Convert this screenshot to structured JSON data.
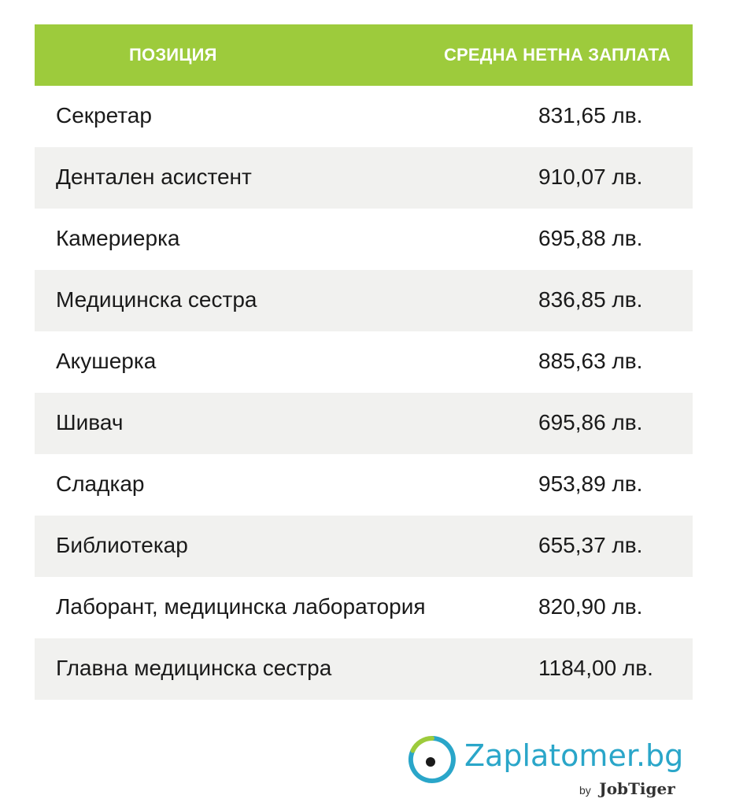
{
  "table": {
    "header": {
      "position": "ПОЗИЦИЯ",
      "salary": "СРЕДНА НЕТНА ЗАПЛАТА"
    },
    "rows": [
      {
        "position": "Секретар",
        "salary": "831,65 лв."
      },
      {
        "position": "Дентален асистент",
        "salary": "910,07 лв."
      },
      {
        "position": "Камериерка",
        "salary": "695,88 лв."
      },
      {
        "position": "Медицинска сестра",
        "salary": "836,85 лв."
      },
      {
        "position": "Акушерка",
        "salary": "885,63 лв."
      },
      {
        "position": "Шивач",
        "salary": "695,86 лв."
      },
      {
        "position": "Сладкар",
        "salary": "953,89 лв."
      },
      {
        "position": "Библиотекар",
        "salary": "655,37 лв."
      },
      {
        "position": "Лаборант, медицинска лаборатория",
        "salary": "820,90 лв."
      },
      {
        "position": "Главна медицинска сестра",
        "salary": "1184,00 лв."
      }
    ]
  },
  "brand": {
    "name": "Zaplatomer.bg",
    "by": "by",
    "company": "JobTiger",
    "logo_icon": "circle-dot-logo-icon"
  },
  "colors": {
    "header_green": "#9dcb3c",
    "row_shade": "#f1f1ef",
    "brand_blue": "#2aa6c9"
  }
}
